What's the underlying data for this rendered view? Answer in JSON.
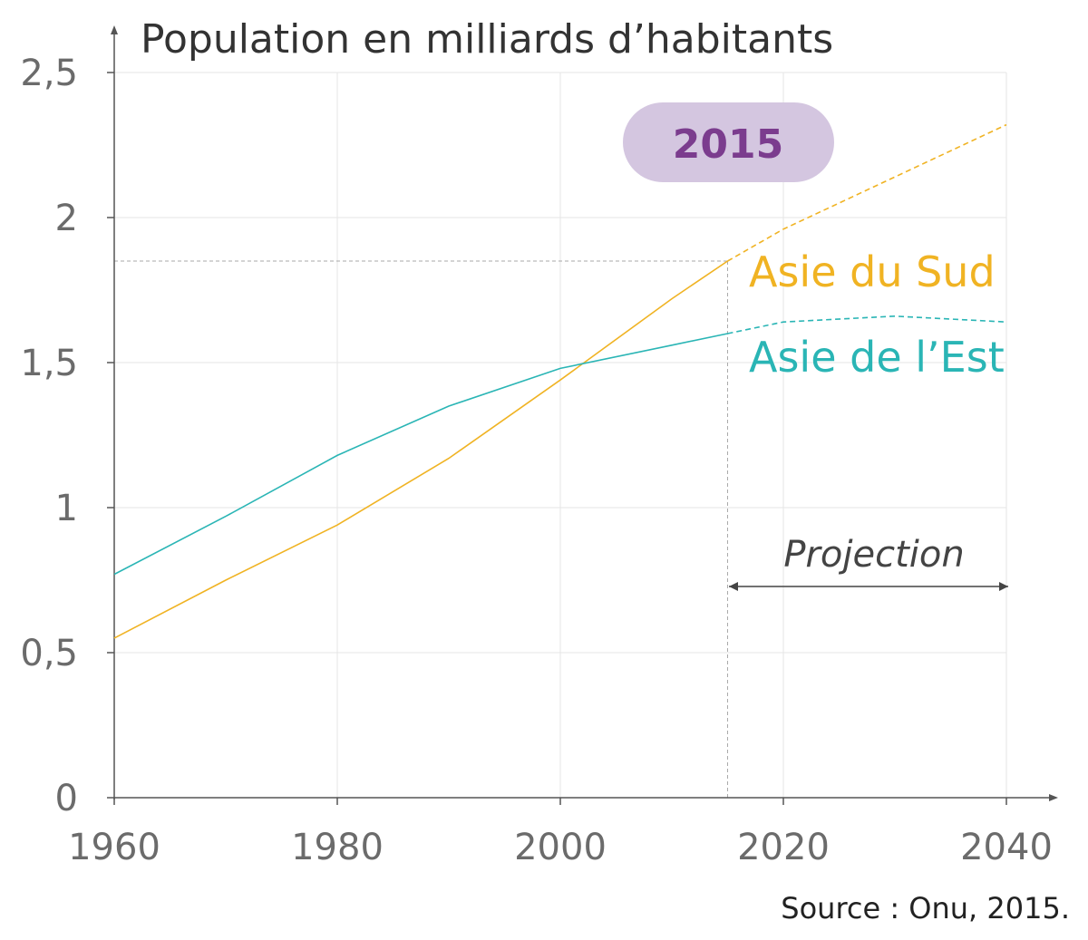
{
  "chart_data": {
    "type": "line",
    "title": "Population en milliards d’habitants",
    "xlabel": "",
    "ylabel": "Population en milliards d’habitants",
    "xlim": [
      1960,
      2040
    ],
    "ylim": [
      0,
      2.5
    ],
    "grid": true,
    "x_ticks": [
      1960,
      1980,
      2000,
      2020,
      2040
    ],
    "x_tick_labels": [
      "1960",
      "1980",
      "2000",
      "2020",
      "2040"
    ],
    "y_ticks": [
      0,
      0.5,
      1,
      1.5,
      2,
      2.5
    ],
    "y_tick_labels": [
      "0",
      "0,5",
      "1",
      "1,5",
      "2",
      "2,5"
    ],
    "projection_start": 2015,
    "highlight_year": 2015,
    "highlight_value": 1.85,
    "series": [
      {
        "name": "Asie du Sud",
        "color": "#f0b323",
        "x": [
          1960,
          1970,
          1980,
          1990,
          2000,
          2010,
          2015,
          2020,
          2030,
          2040
        ],
        "values": [
          0.55,
          0.75,
          0.94,
          1.17,
          1.44,
          1.72,
          1.85,
          1.96,
          2.14,
          2.32
        ]
      },
      {
        "name": "Asie de l’Est",
        "color": "#2ab5b5",
        "x": [
          1960,
          1970,
          1980,
          1990,
          2000,
          2010,
          2015,
          2020,
          2030,
          2040
        ],
        "values": [
          0.77,
          0.97,
          1.18,
          1.35,
          1.48,
          1.56,
          1.6,
          1.64,
          1.66,
          1.64
        ]
      }
    ],
    "annotations": {
      "badge": "2015",
      "projection": "Projection"
    },
    "source": "Source : Onu, 2015.",
    "colors": {
      "badge_bg": "#d4c6e0",
      "badge_text": "#7b3c8e",
      "axis": "#555555",
      "grid": "#e6e6e6",
      "guide": "#aaaaaa"
    }
  }
}
